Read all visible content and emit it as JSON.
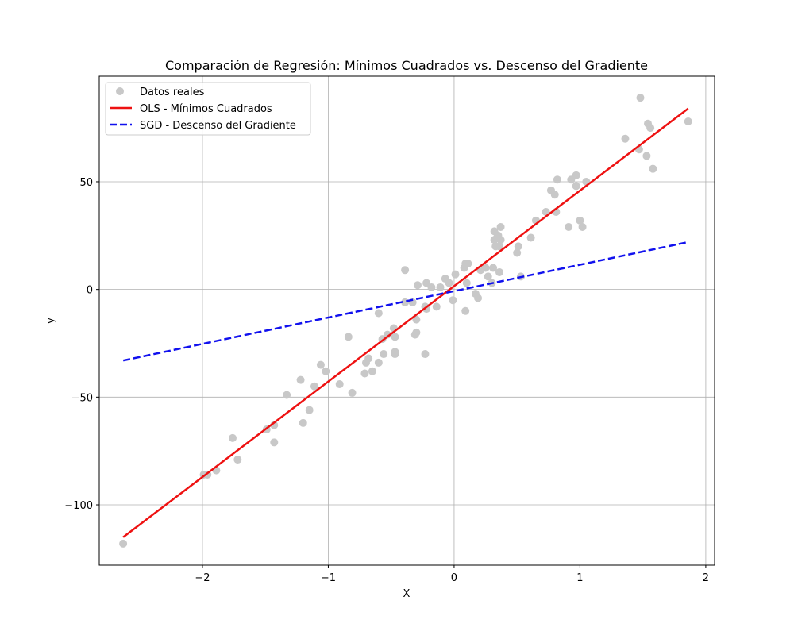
{
  "chart_data": {
    "type": "scatter",
    "title": "Comparación de Regresión: Mínimos Cuadrados vs. Descenso del Gradiente",
    "xlabel": "X",
    "ylabel": "y",
    "xlim": [
      -2.82,
      2.07
    ],
    "ylim": [
      -128,
      99
    ],
    "xticks": [
      -2,
      -1,
      0,
      1,
      2
    ],
    "xtick_labels": [
      "−2",
      "−1",
      "0",
      "1",
      "2"
    ],
    "yticks": [
      -100,
      -50,
      0,
      50
    ],
    "ytick_labels": [
      "−100",
      "−50",
      "0",
      "50"
    ],
    "grid": true,
    "legend_position": "upper-left",
    "series": [
      {
        "name": "Datos reales",
        "kind": "scatter",
        "color": "#c8c8c8",
        "points": [
          [
            -2.63,
            -118
          ],
          [
            -1.99,
            -86
          ],
          [
            -1.96,
            -86
          ],
          [
            -1.89,
            -84
          ],
          [
            -1.76,
            -69
          ],
          [
            -1.72,
            -79
          ],
          [
            -1.49,
            -65
          ],
          [
            -1.43,
            -63
          ],
          [
            -1.43,
            -71
          ],
          [
            -1.33,
            -49
          ],
          [
            -1.22,
            -42
          ],
          [
            -1.2,
            -62
          ],
          [
            -1.15,
            -56
          ],
          [
            -1.11,
            -45
          ],
          [
            -1.06,
            -35
          ],
          [
            -1.02,
            -38
          ],
          [
            -0.91,
            -44
          ],
          [
            -0.84,
            -22
          ],
          [
            -0.81,
            -48
          ],
          [
            -0.71,
            -39
          ],
          [
            -0.7,
            -34
          ],
          [
            -0.68,
            -32
          ],
          [
            -0.65,
            -38
          ],
          [
            -0.6,
            -34
          ],
          [
            -0.6,
            -11
          ],
          [
            -0.57,
            -23
          ],
          [
            -0.56,
            -30
          ],
          [
            -0.53,
            -21
          ],
          [
            -0.48,
            -18
          ],
          [
            -0.47,
            -22
          ],
          [
            -0.47,
            -29
          ],
          [
            -0.47,
            -30
          ],
          [
            -0.39,
            9
          ],
          [
            -0.39,
            -6
          ],
          [
            -0.33,
            -6
          ],
          [
            -0.31,
            -21
          ],
          [
            -0.3,
            -20
          ],
          [
            -0.3,
            -14
          ],
          [
            -0.29,
            2
          ],
          [
            -0.23,
            -8
          ],
          [
            -0.23,
            -30
          ],
          [
            -0.22,
            3
          ],
          [
            -0.22,
            -9
          ],
          [
            -0.18,
            1
          ],
          [
            -0.14,
            -8
          ],
          [
            -0.11,
            1
          ],
          [
            -0.07,
            5
          ],
          [
            -0.04,
            3
          ],
          [
            -0.01,
            -5
          ],
          [
            0.01,
            7
          ],
          [
            0.08,
            10
          ],
          [
            0.09,
            12
          ],
          [
            0.09,
            -10
          ],
          [
            0.1,
            3
          ],
          [
            0.11,
            12
          ],
          [
            0.17,
            -2
          ],
          [
            0.19,
            -4
          ],
          [
            0.21,
            9
          ],
          [
            0.25,
            10
          ],
          [
            0.27,
            6
          ],
          [
            0.3,
            3
          ],
          [
            0.31,
            10
          ],
          [
            0.32,
            27
          ],
          [
            0.32,
            23
          ],
          [
            0.33,
            20
          ],
          [
            0.34,
            24
          ],
          [
            0.35,
            25
          ],
          [
            0.36,
            20
          ],
          [
            0.37,
            23
          ],
          [
            0.36,
            8
          ],
          [
            0.37,
            29
          ],
          [
            0.5,
            17
          ],
          [
            0.51,
            20
          ],
          [
            0.53,
            6
          ],
          [
            0.61,
            24
          ],
          [
            0.65,
            32
          ],
          [
            0.73,
            36
          ],
          [
            0.77,
            46
          ],
          [
            0.8,
            44
          ],
          [
            0.81,
            36
          ],
          [
            0.82,
            51
          ],
          [
            0.91,
            29
          ],
          [
            0.93,
            51
          ],
          [
            0.97,
            53
          ],
          [
            0.97,
            48
          ],
          [
            1.0,
            32
          ],
          [
            1.02,
            29
          ],
          [
            1.05,
            50
          ],
          [
            1.36,
            70
          ],
          [
            1.47,
            65
          ],
          [
            1.48,
            89
          ],
          [
            1.53,
            62
          ],
          [
            1.54,
            77
          ],
          [
            1.56,
            75
          ],
          [
            1.58,
            56
          ],
          [
            1.86,
            78
          ]
        ]
      },
      {
        "name": "OLS - Mínimos Cuadrados",
        "kind": "line",
        "color": "#ee1111",
        "dash": "solid",
        "points": [
          [
            -2.63,
            -115
          ],
          [
            1.86,
            84
          ]
        ]
      },
      {
        "name": "SGD - Descenso del Gradiente",
        "kind": "line",
        "color": "#1111ee",
        "dash": "dashed",
        "points": [
          [
            -2.63,
            -33
          ],
          [
            1.86,
            22
          ]
        ]
      }
    ]
  }
}
